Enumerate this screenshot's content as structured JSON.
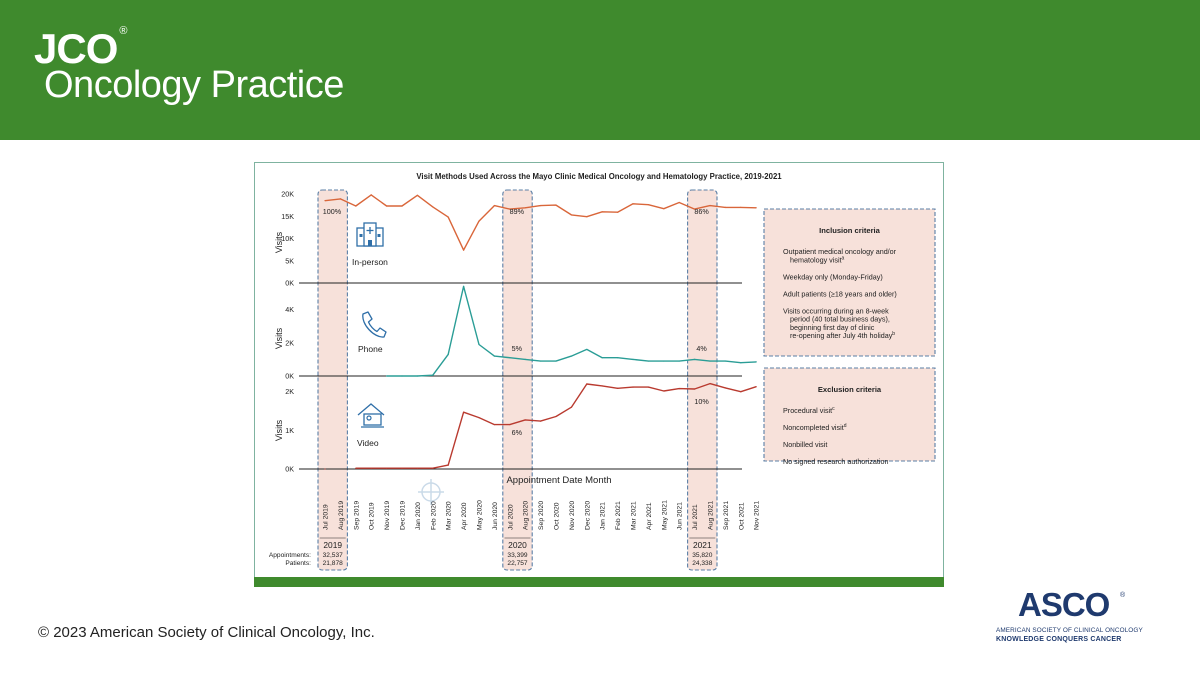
{
  "header": {
    "brand": "JCO",
    "brand_mark": "®",
    "journal_name": "Oncology Practice",
    "color": "#3f8a2d"
  },
  "footer": {
    "copyright": "© 2023 American Society of Clinical Oncology, Inc.",
    "asco_logo": {
      "word": "ASCO",
      "mark": "®",
      "line1": "AMERICAN SOCIETY OF CLINICAL ONCOLOGY",
      "line2": "KNOWLEDGE CONQUERS CANCER",
      "color": "#1f3a6e"
    }
  },
  "figure": {
    "frame_color": "#7fb3a0",
    "bottom_bar_color": "#3f8a2d",
    "highlight_color": "#f7e1da",
    "highlight_border_color": "#5b7fa6",
    "inclusion": {
      "title": "Inclusion criteria",
      "items": [
        {
          "lines": [
            "Outpatient medical oncology and/or",
            "hematology visit"
          ],
          "sup": "a"
        },
        {
          "lines": [
            "Weekday only (Monday-Friday)"
          ],
          "sup": ""
        },
        {
          "lines": [
            "Adult patients (≥18 years and older)"
          ],
          "sup": ""
        },
        {
          "lines": [
            "Visits occurring during an 8-week",
            "period (40 total business days),",
            "beginning first day of clinic",
            "re-opening after July 4th holiday"
          ],
          "sup": "b"
        }
      ]
    },
    "exclusion": {
      "title": "Exclusion criteria",
      "items": [
        {
          "lines": [
            "Procedural visit"
          ],
          "sup": "c"
        },
        {
          "lines": [
            "Noncompleted visit"
          ],
          "sup": "d"
        },
        {
          "lines": [
            "Nonbilled visit"
          ],
          "sup": ""
        },
        {
          "lines": [
            "No signed research authorization"
          ],
          "sup": ""
        }
      ]
    }
  },
  "chart_data": {
    "type": "line",
    "title": "Visit Methods Used Across the Mayo Clinic Medical Oncology and Hematology Practice, 2019-2021",
    "xlabel": "Appointment Date Month",
    "categories": [
      "Jul 2019",
      "Aug 2019",
      "Sep 2019",
      "Oct 2019",
      "Nov 2019",
      "Dec 2019",
      "Jan 2020",
      "Feb 2020",
      "Mar 2020",
      "Apr 2020",
      "May 2020",
      "Jun 2020",
      "Jul 2020",
      "Aug 2020",
      "Sep 2020",
      "Oct 2020",
      "Nov 2020",
      "Dec 2020",
      "Jan 2021",
      "Feb 2021",
      "Mar 2021",
      "Apr 2021",
      "May 2021",
      "Jun 2021",
      "Jul 2021",
      "Aug 2021",
      "Sep 2021",
      "Oct 2021",
      "Nov 2021"
    ],
    "panels": [
      {
        "name": "In-person",
        "ylabel": "Visits",
        "icon": "hospital-icon",
        "color": "#d9663a",
        "yticks": [
          "20K",
          "15K",
          "10K",
          "5K",
          "0K"
        ],
        "ytick_values": [
          20000,
          15000,
          10000,
          5000,
          0
        ],
        "ylim": [
          0,
          20000
        ],
        "x_start": 0,
        "values": [
          18500,
          18900,
          17300,
          19800,
          17300,
          17300,
          19700,
          17100,
          14800,
          7400,
          13900,
          17400,
          16600,
          16900,
          17400,
          17500,
          15300,
          14900,
          16000,
          15900,
          17800,
          17600,
          16700,
          18100,
          16600,
          17400,
          17000,
          17000,
          16900
        ],
        "annotations": [
          {
            "index": 0,
            "text": "100%"
          },
          {
            "index": 12,
            "text": "89%"
          },
          {
            "index": 24,
            "text": "86%"
          }
        ]
      },
      {
        "name": "Phone",
        "ylabel": "Visits",
        "icon": "phone-icon",
        "color": "#2a9d96",
        "yticks": [
          "4K",
          "2K",
          "0K"
        ],
        "ytick_values": [
          4000,
          2000,
          0
        ],
        "ylim": [
          0,
          5000
        ],
        "x_start": 4,
        "values": [
          null,
          null,
          null,
          null,
          0,
          0,
          0,
          50,
          1300,
          5400,
          1900,
          1200,
          1100,
          1000,
          900,
          900,
          1200,
          1600,
          1100,
          1100,
          1000,
          900,
          900,
          900,
          1000,
          900,
          900,
          800,
          850
        ],
        "annotations": [
          {
            "index": 12,
            "text": "5%"
          },
          {
            "index": 24,
            "text": "4%"
          }
        ]
      },
      {
        "name": "Video",
        "ylabel": "Visits",
        "icon": "telehealth-icon",
        "color": "#b93a2f",
        "yticks": [
          "2K",
          "1K",
          "0K"
        ],
        "ytick_values": [
          2000,
          1000,
          0
        ],
        "ylim": [
          0,
          2200
        ],
        "x_start": 0,
        "values": [
          0,
          null,
          20,
          20,
          20,
          20,
          20,
          20,
          100,
          1470,
          1330,
          1150,
          1150,
          1270,
          1240,
          1360,
          1600,
          2200,
          2150,
          2090,
          2120,
          2120,
          2020,
          2080,
          2070,
          2210,
          2100,
          2000,
          2130
        ],
        "annotations": [
          {
            "index": 12,
            "text": "6%"
          },
          {
            "index": 24,
            "text": "10%"
          }
        ]
      }
    ],
    "highlight_periods": [
      {
        "index": 0,
        "year": "2019",
        "appointments": "32,537",
        "patients": "21,878"
      },
      {
        "index": 12,
        "year": "2020",
        "appointments": "33,399",
        "patients": "22,757"
      },
      {
        "index": 24,
        "year": "2021",
        "appointments": "35,820",
        "patients": "24,338"
      }
    ],
    "row_labels": {
      "appointments": "Appointments:",
      "patients": "Patients:"
    }
  }
}
